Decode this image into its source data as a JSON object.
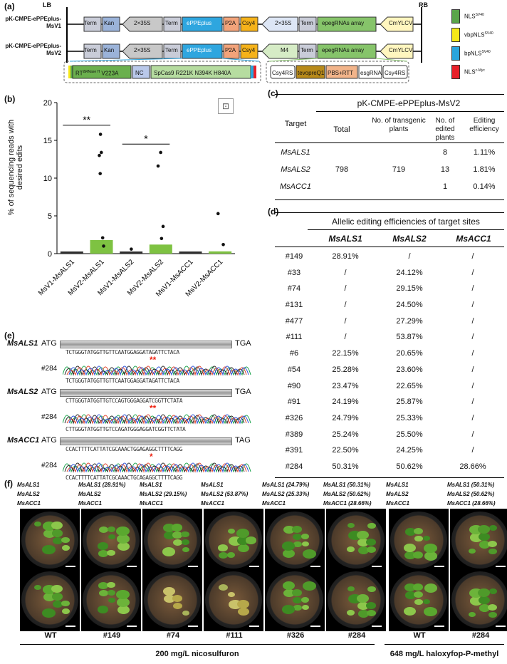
{
  "panel_labels": [
    "(a)",
    "(b)",
    "(c)",
    "(d)",
    "(e)",
    "(f)"
  ],
  "a": {
    "LB": "LB",
    "RB": "RB",
    "v1": "pK-CMPE-ePPEplus-MsV1",
    "v2": "pK-CMPE-ePPEplus-MsV2",
    "term": "Term",
    "kan": "Kan",
    "p35s": "2×35S",
    "eppe": "ePPEplus",
    "p2a": "P2A",
    "csy4": "Csy4",
    "epeg": "epegRNAs array",
    "cmy": "CmYLCV",
    "m4": "M4",
    "rt": "RT",
    "rt_sup": "ΔRNase H",
    "rt_mut": "V223A",
    "nc": "NC",
    "spcas": "SpCas9 R221K N394K H840A",
    "csy4rs": "Csy4RS",
    "tevo": "tevopreQ1",
    "pbs": "PBS+RTT",
    "esg": "esgRNA",
    "legend": [
      {
        "label": "NLS",
        "sup": "SV40",
        "color": "#5aa54a"
      },
      {
        "label": "vbpNLS",
        "sup": "SV40",
        "color": "#f5e81a"
      },
      {
        "label": "bpNLS",
        "sup": "SV40",
        "color": "#2aa5dc"
      },
      {
        "label": "NLS",
        "sup": "c-Myc",
        "color": "#e8202a"
      }
    ]
  },
  "chart_data": {
    "type": "bar",
    "ylabel": "% of sequencing reads with desired edits",
    "ylim": [
      0,
      20
    ],
    "yticks": [
      "0",
      "5",
      "10",
      "15",
      "20"
    ],
    "categories": [
      "MsV1-MsALS1",
      "MsV2-MsALS1",
      "MsV1-MsALS2",
      "MsV2-MsALS2",
      "MsV1-MsACC1",
      "MsV2-MsACC1"
    ],
    "values": [
      0.05,
      1.8,
      0.05,
      1.2,
      0.05,
      0.3
    ],
    "points": [
      [],
      [
        15.8,
        13.4,
        13.0,
        10.6,
        2.1,
        1.0
      ],
      [
        0.6
      ],
      [
        13.4,
        11.6,
        3.6,
        2.0
      ],
      [],
      [
        5.3,
        1.2
      ]
    ],
    "sig": [
      {
        "label": "**"
      },
      {
        "label": "*"
      }
    ],
    "bar_color_v1": "#2f2f2f",
    "bar_color_v2": "#7ec242"
  },
  "c": {
    "title": "pK-CMPE-ePPEplus-MsV2",
    "headers": [
      "Target",
      "Total",
      "No. of transgenic plants",
      "No. of edited plants",
      "Editing efficiency"
    ],
    "rows": [
      [
        "MsALS1",
        "",
        "",
        "8",
        "1.11%"
      ],
      [
        "MsALS2",
        "798",
        "719",
        "13",
        "1.81%"
      ],
      [
        "MsACC1",
        "",
        "",
        "1",
        "0.14%"
      ]
    ]
  },
  "d": {
    "title": "Allelic editing efficiencies of target sites",
    "headers": [
      "",
      "MsALS1",
      "MsALS2",
      "MsACC1"
    ],
    "rows": [
      [
        "#149",
        "28.91%",
        "/",
        "/"
      ],
      [
        "#33",
        "/",
        "24.12%",
        "/"
      ],
      [
        "#74",
        "/",
        "29.15%",
        "/"
      ],
      [
        "#131",
        "/",
        "24.50%",
        "/"
      ],
      [
        "#477",
        "/",
        "27.29%",
        "/"
      ],
      [
        "#111",
        "/",
        "53.87%",
        "/"
      ],
      [
        "#6",
        "22.15%",
        "20.65%",
        "/"
      ],
      [
        "#54",
        "25.28%",
        "23.60%",
        "/"
      ],
      [
        "#90",
        "23.47%",
        "22.65%",
        "/"
      ],
      [
        "#91",
        "24.19%",
        "25.87%",
        "/"
      ],
      [
        "#326",
        "24.79%",
        "25.33%",
        "/"
      ],
      [
        "#389",
        "25.24%",
        "25.50%",
        "/"
      ],
      [
        "#391",
        "22.50%",
        "24.25%",
        "/"
      ],
      [
        "#284",
        "50.31%",
        "50.62%",
        "28.66%"
      ]
    ]
  },
  "e": {
    "genes": [
      {
        "name": "MsALS1",
        "start": "ATG",
        "stop": "TGA",
        "id": "#284",
        "ref": "TCTGGGTATGGTTGTTCAATGGAGGATAGATTCTACA",
        "alt": "TCTGGGTATGGTTGTTCAATGGAGGATAGATTCTACA",
        "stars": "**"
      },
      {
        "name": "MsALS2",
        "start": "ATG",
        "stop": "TGA",
        "id": "#284",
        "ref": "CTTGGGTATGGTTGTCCAGTGGGAGGATCGGTTCTATA",
        "alt": "CTTGGGTATGGTTGTCCAGATGGGAGGATCGGTTCTATA",
        "stars": "**"
      },
      {
        "name": "MsACC1",
        "start": "ATG",
        "stop": "TAG",
        "id": "#284",
        "ref": "CCACTTTTCATTATCGCAAACTGGAGAGGCTTTTCAGG",
        "alt": "CCACTTTTCATTATCGCAAACTGCAGAGGCTTTTCAGG",
        "stars": "*"
      }
    ]
  },
  "f": {
    "headers": [
      [
        "MsALS1",
        "MsALS2",
        "MsACC1"
      ],
      [
        "MsALS1 (28.91%)",
        "MsALS2",
        "MsACC1"
      ],
      [
        "MsALS1",
        "MsALS2 (29.15%)",
        "MsACC1"
      ],
      [
        "MsALS1",
        "MsALS2 (53.87%)",
        "MsACC1"
      ],
      [
        "MsALS1 (24.79%)",
        "MsALS2 (25.33%)",
        "MsACC1"
      ],
      [
        "MsALS1 (50.31%)",
        "MsALS2 (50.62%)",
        "MsACC1 (28.66%)"
      ],
      [
        "MsALS1",
        "MsALS2",
        "MsACC1"
      ],
      [
        "MsALS1 (50.31%)",
        "MsALS2 (50.62%)",
        "MsACC1 (28.66%)"
      ]
    ],
    "ids": [
      "WT",
      "#149",
      "#74",
      "#111",
      "#326",
      "#284",
      "WT",
      "#284"
    ],
    "treat1": "200 mg/L nicosulfuron",
    "treat2": "648 mg/L haloxyfop-P-methyl"
  }
}
